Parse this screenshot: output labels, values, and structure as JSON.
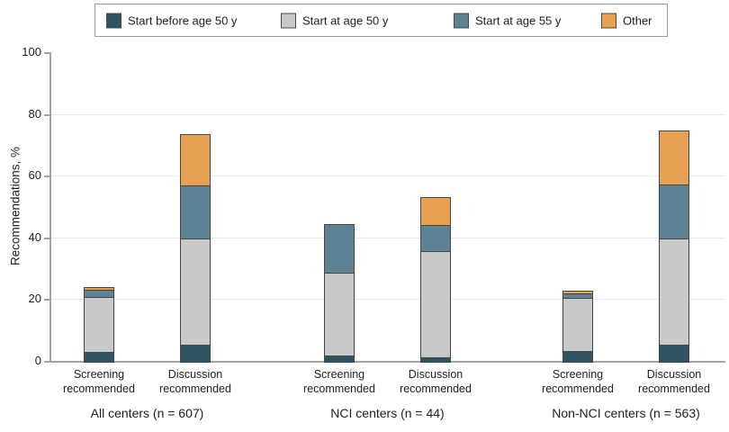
{
  "legend": {
    "items": [
      {
        "label": "Start before age 50 y",
        "color": "#2E5462"
      },
      {
        "label": "Start at age 50 y",
        "color": "#C9C9CB"
      },
      {
        "label": "Start at age 55 y",
        "color": "#5C8294"
      },
      {
        "label": "Other",
        "color": "#E6A252"
      }
    ]
  },
  "chart_data": {
    "type": "bar",
    "variant": "stacked",
    "title": "",
    "ylabel": "Recommendations, %",
    "xlabel": "",
    "ylim": [
      0,
      100
    ],
    "yticks": [
      0,
      20,
      40,
      60,
      80,
      100
    ],
    "grid": "horizontal gridlines at 20, 40, 60, 80",
    "legend_position": "top",
    "series_names": [
      "Start before age 50 y",
      "Start at age 50 y",
      "Start at age 55 y",
      "Other"
    ],
    "series_colors": [
      "#2E5462",
      "#C9C9CB",
      "#5C8294",
      "#E6A252"
    ],
    "groups": [
      {
        "label": "All centers (n = 607)",
        "bars": [
          {
            "category": "Screening recommended",
            "values": [
              3.5,
              18.2,
              2.7,
              1.2
            ],
            "total": 25.6
          },
          {
            "category": "Discussion recommended",
            "values": [
              5.7,
              34.6,
              17.6,
              16.8
            ],
            "total": 74.7
          }
        ]
      },
      {
        "label": "NCI centers (n = 44)",
        "bars": [
          {
            "category": "Screening recommended",
            "values": [
              2.2,
              27.2,
              16.1,
              0
            ],
            "total": 45.5
          },
          {
            "category": "Discussion recommended",
            "values": [
              1.7,
              34.7,
              8.8,
              9.3
            ],
            "total": 54.5
          }
        ]
      },
      {
        "label": "Non-NCI centers (n = 563)",
        "bars": [
          {
            "category": "Screening recommended",
            "values": [
              3.7,
              17.5,
              1.7,
              1.2
            ],
            "total": 24.1
          },
          {
            "category": "Discussion recommended",
            "values": [
              5.7,
              34.8,
              17.9,
              17.7
            ],
            "total": 76.1
          }
        ]
      }
    ]
  },
  "colors": {
    "axis": "#a3a3a3",
    "gridline": "#ebebeb",
    "segment_border": "#464646",
    "text": "#1f1f1f"
  }
}
